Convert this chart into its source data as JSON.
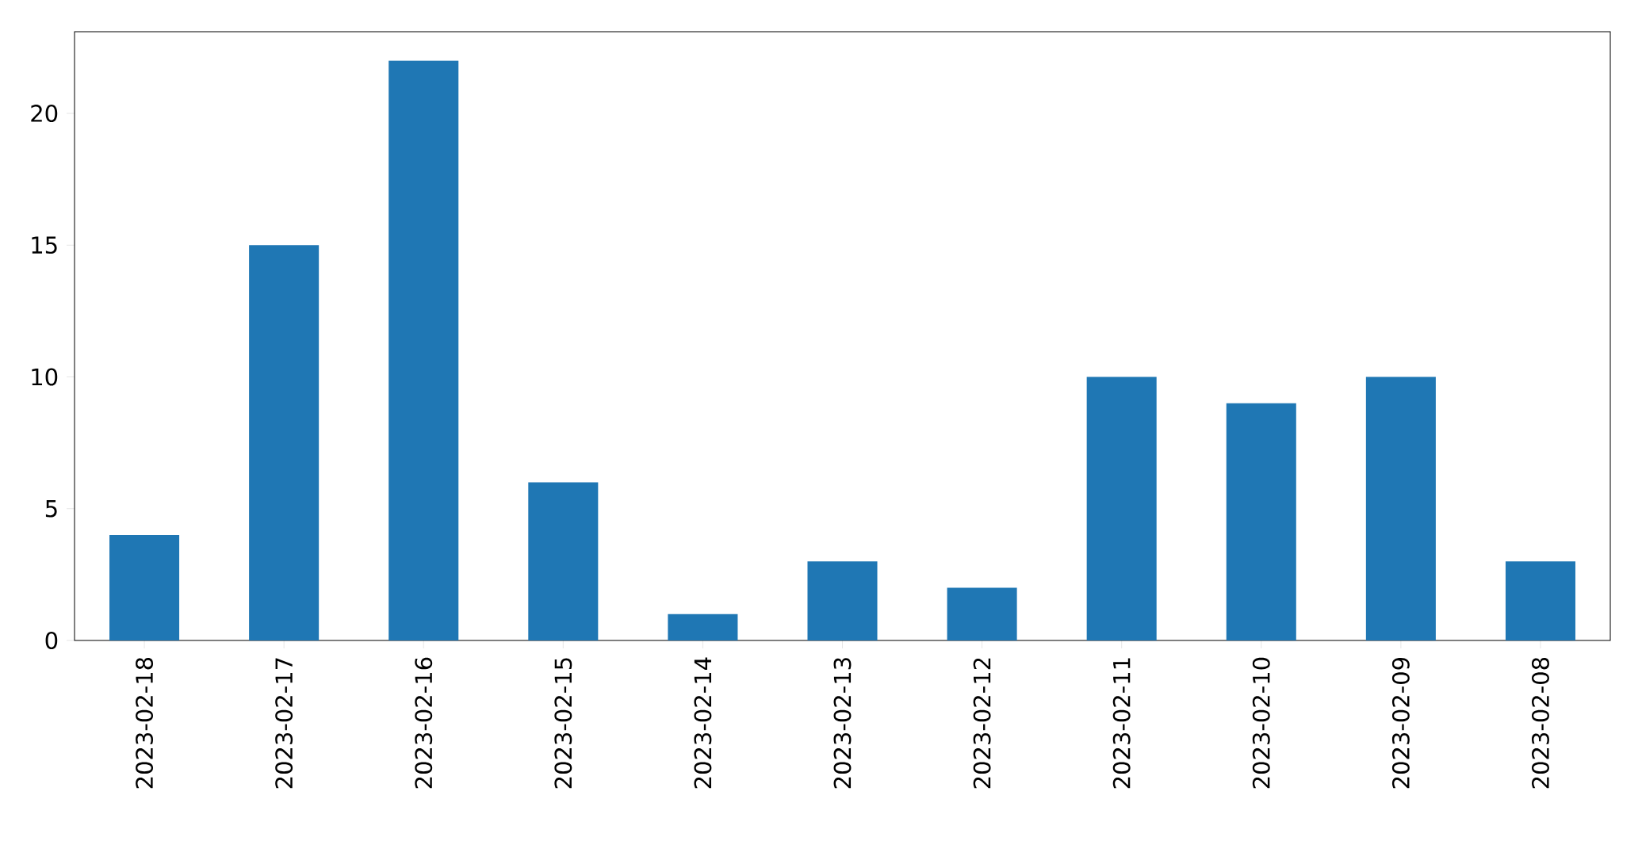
{
  "chart_data": {
    "type": "bar",
    "categories": [
      "2023-02-18",
      "2023-02-17",
      "2023-02-16",
      "2023-02-15",
      "2023-02-14",
      "2023-02-13",
      "2023-02-12",
      "2023-02-11",
      "2023-02-10",
      "2023-02-09",
      "2023-02-08"
    ],
    "values": [
      4,
      15,
      22,
      6,
      1,
      3,
      2,
      10,
      9,
      10,
      3
    ],
    "color": "#1f77b4",
    "ylim": [
      0,
      23.1
    ],
    "yticks": [
      0,
      5,
      10,
      15,
      20
    ]
  }
}
